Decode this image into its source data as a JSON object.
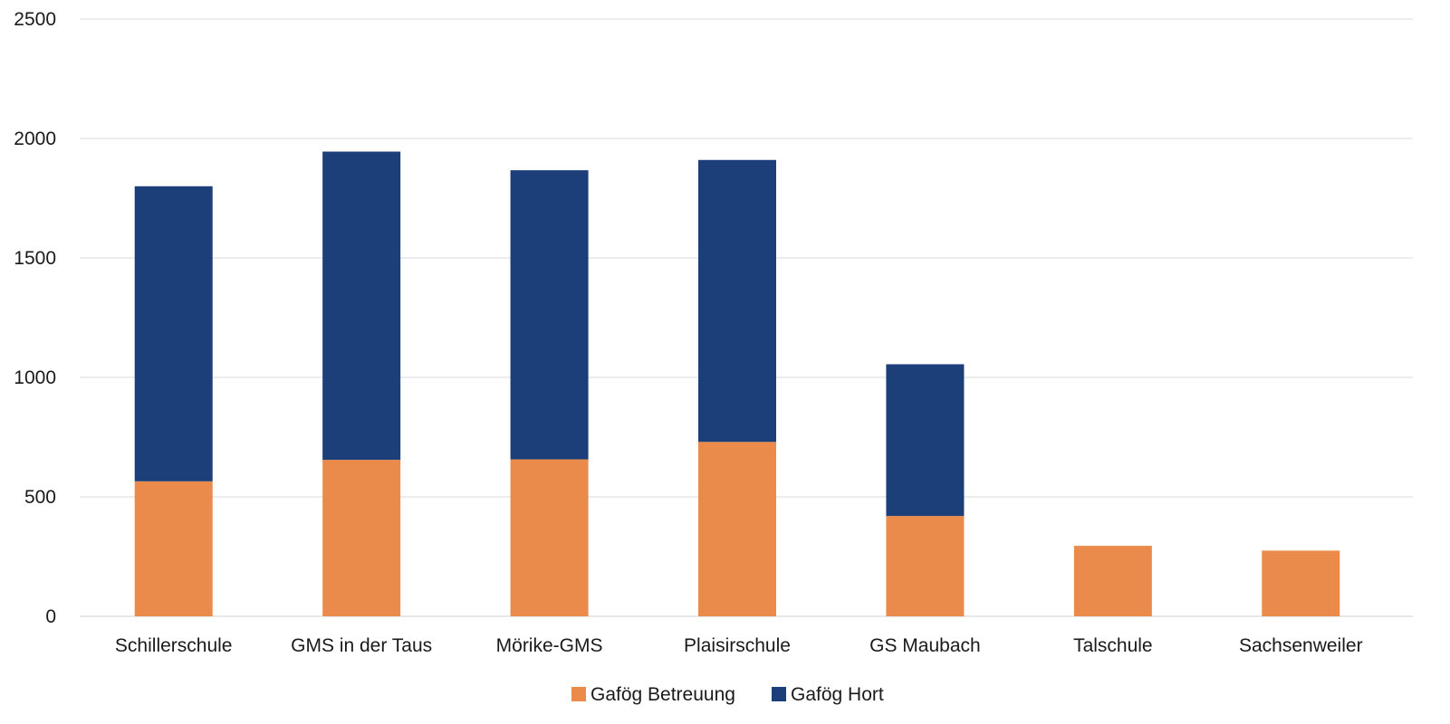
{
  "chart_data": {
    "type": "bar",
    "stacked": true,
    "categories": [
      "Schillerschule",
      "GMS in der Taus",
      "Mörike-GMS",
      "Plaisirschule",
      "GS Maubach",
      "Talschule",
      "Sachsenweiler"
    ],
    "series": [
      {
        "name": "Gafög Betreuung",
        "color": "#ea8b4b",
        "values": [
          565,
          655,
          657,
          730,
          420,
          295,
          275
        ]
      },
      {
        "name": "Gafög Hort",
        "color": "#1c3f7a",
        "values": [
          1235,
          1290,
          1210,
          1180,
          635,
          0,
          0
        ]
      }
    ],
    "ylim": [
      0,
      2500
    ],
    "yticks": [
      "0",
      "500",
      "1000",
      "1500",
      "2000",
      "2500"
    ],
    "ytick_values": [
      0,
      500,
      1000,
      1500,
      2000,
      2500
    ],
    "grid": true,
    "legend_position": "bottom"
  }
}
